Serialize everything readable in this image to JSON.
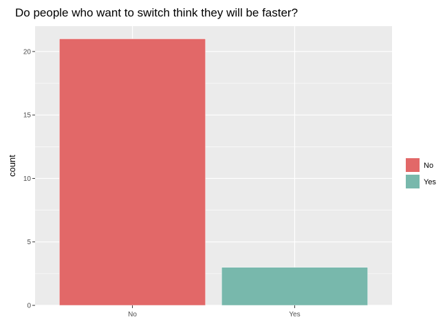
{
  "chart_data": {
    "type": "bar",
    "title": "Do people who want to switch think they will be faster?",
    "xlabel": "",
    "ylabel": "count",
    "categories": [
      "No",
      "Yes"
    ],
    "values": [
      21,
      3
    ],
    "colors": [
      "#E26868",
      "#78B8AC"
    ],
    "yticks": [
      0,
      5,
      10,
      15,
      20
    ],
    "ylim": [
      0,
      22
    ],
    "grid": true,
    "legend": {
      "placement": "right",
      "entries": [
        {
          "label": "No",
          "color": "#E26868"
        },
        {
          "label": "Yes",
          "color": "#78B8AC"
        }
      ]
    }
  }
}
